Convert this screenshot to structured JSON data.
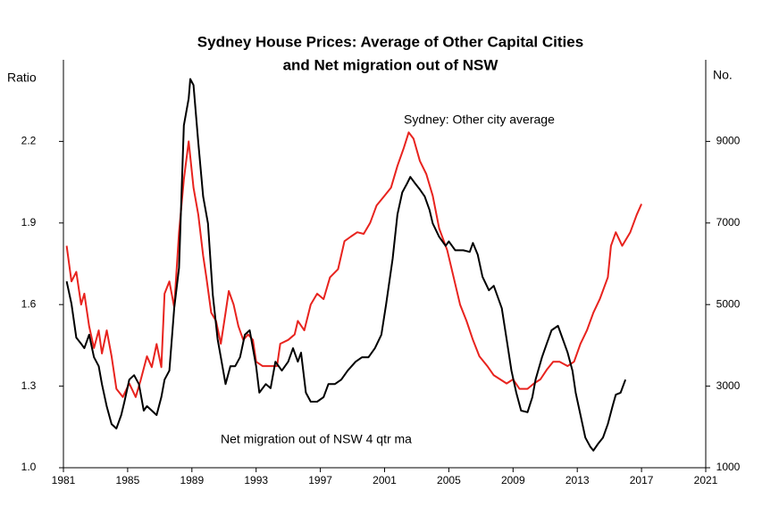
{
  "chart_data": {
    "type": "line",
    "title": [
      "Sydney  House Prices: Average of Other Capital Cities",
      "and Net migration out of NSW"
    ],
    "ylabel": "Ratio",
    "y2label": "No.",
    "xlim": [
      1981,
      2021
    ],
    "xticks": [
      1981,
      1985,
      1989,
      1993,
      1997,
      2001,
      2005,
      2009,
      2013,
      2017,
      2021
    ],
    "ylim": [
      1,
      2.5
    ],
    "yticks": [
      {
        "value": 1,
        "label": "1.0"
      },
      1.3,
      1.6,
      1.9,
      2.2
    ],
    "y2lim": [
      1000,
      11000
    ],
    "y2ticks": [
      1000,
      3000,
      5000,
      7000,
      9000
    ],
    "grid": false,
    "series": [
      {
        "name": "Sydney: Other city average",
        "color": "#e8231e",
        "axis": "y",
        "x": [
          1981.2,
          1981.5,
          1981.8,
          1982.1,
          1982.3,
          1982.6,
          1982.9,
          1983.2,
          1983.4,
          1983.7,
          1984.0,
          1984.3,
          1984.7,
          1985.1,
          1985.5,
          1985.8,
          1986.2,
          1986.5,
          1986.8,
          1987.1,
          1987.3,
          1987.6,
          1987.9,
          1988.2,
          1988.5,
          1988.8,
          1989.1,
          1989.4,
          1989.7,
          1989.9,
          1990.2,
          1990.5,
          1990.8,
          1991.1,
          1991.3,
          1991.6,
          1991.9,
          1992.2,
          1992.5,
          1992.8,
          1993.0,
          1993.4,
          1993.9,
          1994.3,
          1994.5,
          1995.0,
          1995.4,
          1995.6,
          1996.0,
          1996.4,
          1996.8,
          1997.2,
          1997.6,
          1998.1,
          1998.5,
          1998.9,
          1999.3,
          1999.7,
          2000.1,
          2000.5,
          2001.0,
          2001.4,
          2001.8,
          2002.2,
          2002.5,
          2002.8,
          2003.2,
          2003.6,
          2004.0,
          2004.4,
          2004.9,
          2005.3,
          2005.7,
          2006.1,
          2006.5,
          2006.9,
          2007.4,
          2007.8,
          2008.2,
          2008.6,
          2009.0,
          2009.4,
          2009.9,
          2010.3,
          2010.7,
          2011.1,
          2011.5,
          2011.9,
          2012.4,
          2012.8,
          2013.2,
          2013.6,
          2014.0,
          2014.4,
          2014.9,
          2015.1,
          2015.4,
          2015.8,
          2016.3,
          2016.7,
          2017.0
        ],
        "values": [
          1.816,
          1.685,
          1.72,
          1.6,
          1.64,
          1.52,
          1.44,
          1.505,
          1.42,
          1.505,
          1.41,
          1.29,
          1.26,
          1.31,
          1.26,
          1.32,
          1.41,
          1.37,
          1.455,
          1.37,
          1.64,
          1.685,
          1.59,
          1.866,
          2.06,
          2.2,
          2.03,
          1.93,
          1.78,
          1.7,
          1.57,
          1.54,
          1.456,
          1.57,
          1.65,
          1.6,
          1.52,
          1.47,
          1.49,
          1.47,
          1.39,
          1.374,
          1.374,
          1.374,
          1.456,
          1.47,
          1.49,
          1.54,
          1.505,
          1.6,
          1.64,
          1.62,
          1.7,
          1.73,
          1.833,
          1.85,
          1.866,
          1.86,
          1.9,
          1.964,
          2.0,
          2.03,
          2.11,
          2.177,
          2.233,
          2.21,
          2.128,
          2.08,
          2.0,
          1.88,
          1.8,
          1.7,
          1.6,
          1.54,
          1.47,
          1.41,
          1.374,
          1.34,
          1.325,
          1.31,
          1.325,
          1.29,
          1.29,
          1.31,
          1.325,
          1.36,
          1.39,
          1.39,
          1.374,
          1.39,
          1.456,
          1.505,
          1.57,
          1.62,
          1.7,
          1.816,
          1.866,
          1.816,
          1.866,
          1.93,
          1.97
        ]
      },
      {
        "name": "Net migration out of NSW 4 qtr ma",
        "color": "#000000",
        "axis": "y2",
        "x": [
          1981.2,
          1981.5,
          1981.8,
          1982.1,
          1982.3,
          1982.6,
          1982.9,
          1983.2,
          1983.4,
          1983.7,
          1984.0,
          1984.3,
          1984.6,
          1984.8,
          1985.1,
          1985.4,
          1985.7,
          1986.0,
          1986.2,
          1986.5,
          1986.8,
          1987.1,
          1987.3,
          1987.6,
          1987.9,
          1988.2,
          1988.5,
          1988.8,
          1988.9,
          1989.1,
          1989.4,
          1989.7,
          1990.0,
          1990.3,
          1990.6,
          1990.8,
          1991.1,
          1991.4,
          1991.7,
          1992.0,
          1992.3,
          1992.6,
          1993.0,
          1993.2,
          1993.6,
          1993.9,
          1994.2,
          1994.6,
          1995.0,
          1995.3,
          1995.6,
          1995.8,
          1996.1,
          1996.4,
          1996.8,
          1997.2,
          1997.5,
          1997.9,
          1998.3,
          1998.7,
          1999.2,
          1999.6,
          2000.0,
          2000.4,
          2000.8,
          2001.1,
          2001.5,
          2001.8,
          2002.1,
          2002.4,
          2002.6,
          2002.9,
          2003.2,
          2003.5,
          2003.8,
          2004.0,
          2004.4,
          2004.8,
          2005.0,
          2005.4,
          2005.9,
          2006.3,
          2006.5,
          2006.8,
          2007.1,
          2007.5,
          2007.8,
          2008.0,
          2008.3,
          2008.6,
          2008.9,
          2009.2,
          2009.5,
          2009.9,
          2010.2,
          2010.4,
          2010.8,
          2011.1,
          2011.4,
          2011.8,
          2012.1,
          2012.4,
          2012.7,
          2012.9,
          2013.2,
          2013.5,
          2013.8,
          2014.0,
          2014.3,
          2014.6,
          2014.9,
          2015.2,
          2015.4,
          2015.7,
          2016.0
        ],
        "values": [
          5570,
          5020,
          4190,
          4040,
          3930,
          4260,
          3710,
          3490,
          3050,
          2500,
          2070,
          1960,
          2290,
          2620,
          3160,
          3270,
          3050,
          2400,
          2510,
          2400,
          2290,
          2730,
          3160,
          3380,
          4910,
          5900,
          9390,
          10050,
          10530,
          10380,
          8960,
          7650,
          6990,
          5240,
          4150,
          3710,
          3050,
          3490,
          3490,
          3710,
          4260,
          4370,
          3490,
          2840,
          3050,
          2950,
          3600,
          3380,
          3600,
          3930,
          3600,
          3820,
          2840,
          2620,
          2620,
          2730,
          3050,
          3050,
          3160,
          3380,
          3600,
          3710,
          3710,
          3930,
          4260,
          5020,
          6120,
          7210,
          7750,
          7970,
          8130,
          7970,
          7820,
          7650,
          7320,
          6990,
          6660,
          6440,
          6550,
          6330,
          6330,
          6290,
          6510,
          6220,
          5680,
          5350,
          5460,
          5240,
          4910,
          4150,
          3380,
          2840,
          2400,
          2360,
          2730,
          3160,
          3710,
          4040,
          4370,
          4480,
          4150,
          3820,
          3380,
          2840,
          2290,
          1740,
          1520,
          1420,
          1590,
          1740,
          2070,
          2510,
          2790,
          2840,
          3160
        ]
      }
    ]
  }
}
